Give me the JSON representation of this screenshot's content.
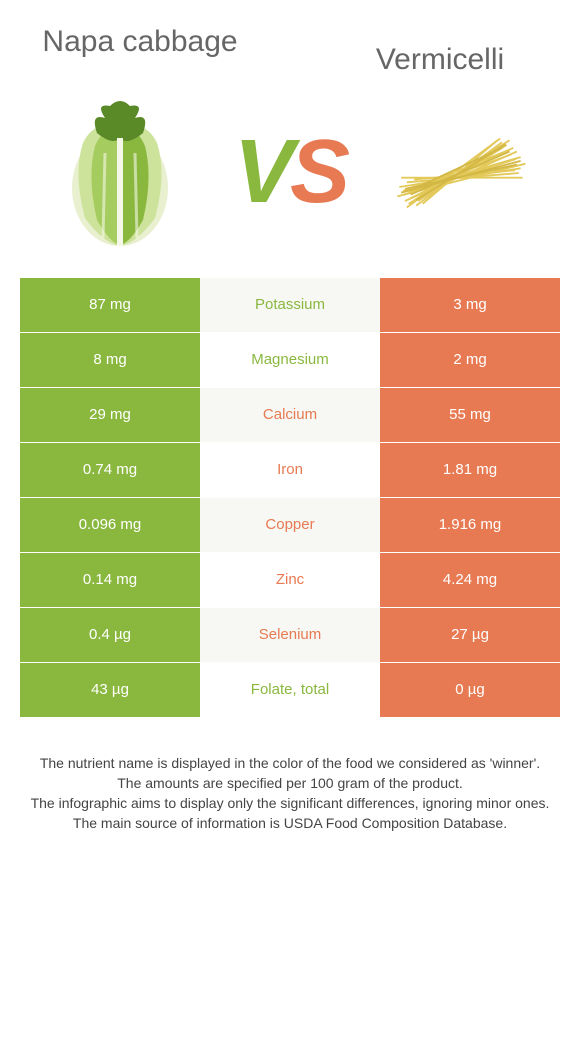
{
  "colors": {
    "green": "#8ab83f",
    "orange": "#e77a52",
    "mid_even": "#f7f7f3",
    "mid_odd": "#ffffff",
    "title": "#666666",
    "footer": "#444444"
  },
  "left_food": {
    "name": "Napa cabbage"
  },
  "right_food": {
    "name": "Vermicelli"
  },
  "vs": "VS",
  "rows": [
    {
      "label": "Potassium",
      "left": "87 mg",
      "right": "3 mg",
      "winner": "left"
    },
    {
      "label": "Magnesium",
      "left": "8 mg",
      "right": "2 mg",
      "winner": "left"
    },
    {
      "label": "Calcium",
      "left": "29 mg",
      "right": "55 mg",
      "winner": "right"
    },
    {
      "label": "Iron",
      "left": "0.74 mg",
      "right": "1.81 mg",
      "winner": "right"
    },
    {
      "label": "Copper",
      "left": "0.096 mg",
      "right": "1.916 mg",
      "winner": "right"
    },
    {
      "label": "Zinc",
      "left": "0.14 mg",
      "right": "4.24 mg",
      "winner": "right"
    },
    {
      "label": "Selenium",
      "left": "0.4 µg",
      "right": "27 µg",
      "winner": "right"
    },
    {
      "label": "Folate, total",
      "left": "43 µg",
      "right": "0 µg",
      "winner": "left"
    }
  ],
  "footer_lines": [
    "The nutrient name is displayed in the color of the food we considered as 'winner'.",
    "The amounts are specified per 100 gram of the product.",
    "The infographic aims to display only the significant differences, ignoring minor ones.",
    "The main source of information is USDA Food Composition Database."
  ]
}
